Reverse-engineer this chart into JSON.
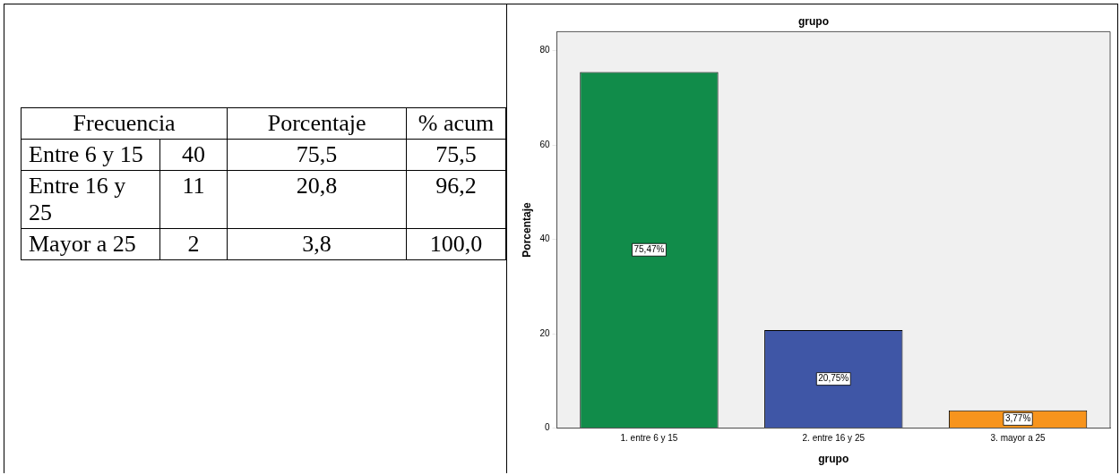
{
  "chart_data": [
    {
      "type": "other",
      "annotations": [
        "Frecuencia",
        "Porcentaje",
        "% acum",
        "Entre 6 y 15",
        "40",
        "75,5",
        "75,5",
        "Entre 16 y 25",
        "11",
        "20,8",
        "96,2",
        "Mayor a 25",
        "2",
        "3,8",
        "100,0"
      ]
    },
    {
      "type": "bar",
      "title": "grupo",
      "xlabel": "grupo",
      "ylabel": "Porcentaje",
      "categories": [
        "1. entre 6 y 15",
        "2. entre 16 y 25",
        "3. mayor a 25"
      ],
      "values": [
        75.47,
        20.75,
        3.77
      ],
      "colors": [
        "#118c4a",
        "#3f56a6",
        "#f7941d"
      ],
      "value_labels": [
        "75,47%",
        "20,75%",
        "3,77%"
      ],
      "ylim": [
        0,
        84
      ],
      "yticks": [
        0,
        20,
        40,
        60,
        80
      ],
      "grid": false,
      "legend": false
    }
  ]
}
